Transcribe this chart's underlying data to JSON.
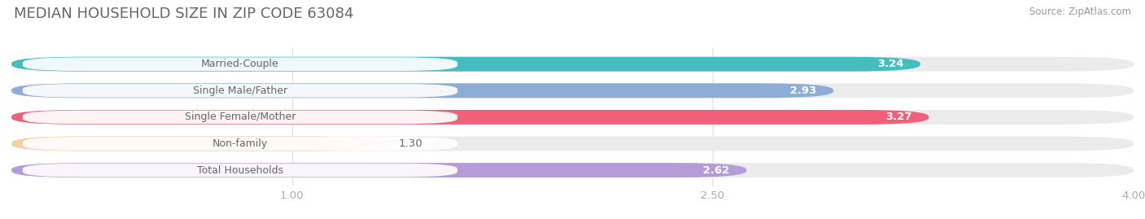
{
  "title": "MEDIAN HOUSEHOLD SIZE IN ZIP CODE 63084",
  "source": "Source: ZipAtlas.com",
  "categories": [
    "Married-Couple",
    "Single Male/Father",
    "Single Female/Mother",
    "Non-family",
    "Total Households"
  ],
  "values": [
    3.24,
    2.93,
    3.27,
    1.3,
    2.62
  ],
  "bar_colors": [
    "#45BCBD",
    "#8BADD6",
    "#F0607A",
    "#F5CFA0",
    "#B39CD8"
  ],
  "bar_bg_color": "#EBEBEB",
  "xlim_min": 0,
  "xlim_max": 4.0,
  "xticks": [
    1.0,
    2.5,
    4.0
  ],
  "bar_height": 0.55,
  "bar_gap": 1.0,
  "value_fontsize": 9.5,
  "title_fontsize": 13,
  "category_fontsize": 9,
  "source_fontsize": 8.5,
  "title_color": "#666666",
  "source_color": "#999999",
  "bg_color": "#FFFFFF",
  "tick_color": "#AAAAAA",
  "grid_color": "#DDDDDD",
  "inside_threshold": 2.5,
  "label_box_color": "#FFFFFF",
  "label_text_color": "#666666",
  "rounding": 0.25
}
